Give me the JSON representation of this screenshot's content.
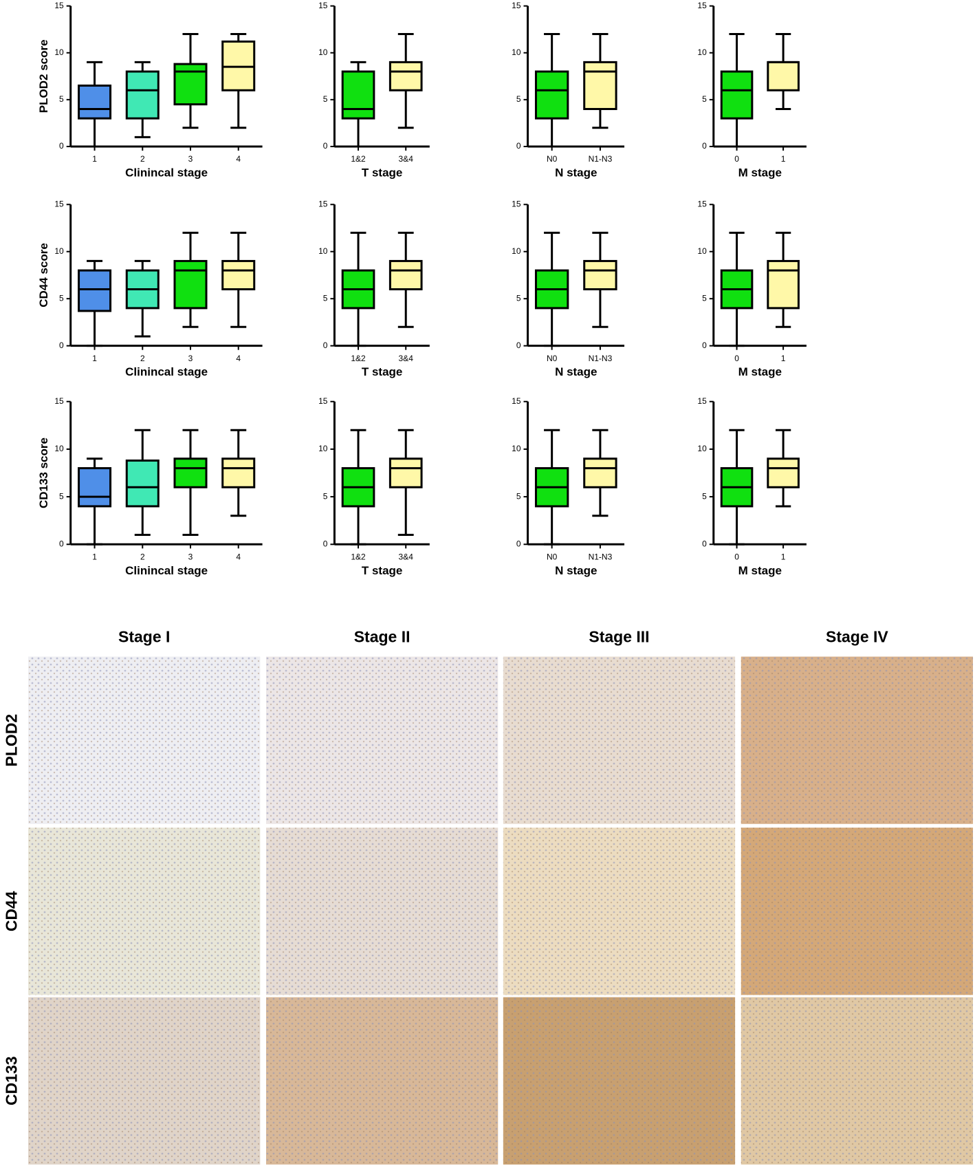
{
  "chart_data": [
    {
      "type": "box",
      "ylabel": "PLOD2 score",
      "xlabel": "Clinincal stage",
      "categories": [
        "1",
        "2",
        "3",
        "4"
      ],
      "colors": [
        "#4f8fe8",
        "#40e8b4",
        "#10e010",
        "#fff8a8"
      ],
      "boxes": [
        {
          "min": 0,
          "q1": 3,
          "median": 4,
          "q3": 6.5,
          "max": 9
        },
        {
          "min": 1,
          "q1": 3,
          "median": 6,
          "q3": 8,
          "max": 9
        },
        {
          "min": 2,
          "q1": 4.5,
          "median": 8,
          "q3": 8.8,
          "max": 12
        },
        {
          "min": 2,
          "q1": 6,
          "median": 8.5,
          "q3": 11.2,
          "max": 12
        }
      ],
      "ylim": [
        0,
        15
      ],
      "yticks": [
        0,
        5,
        10,
        15
      ]
    },
    {
      "type": "box",
      "xlabel": "T stage",
      "categories": [
        "1&2",
        "3&4"
      ],
      "colors": [
        "#10e010",
        "#fff8a8"
      ],
      "boxes": [
        {
          "min": 0,
          "q1": 3,
          "median": 4,
          "q3": 8,
          "max": 9
        },
        {
          "min": 2,
          "q1": 6,
          "median": 8,
          "q3": 9,
          "max": 12
        }
      ],
      "ylim": [
        0,
        15
      ],
      "yticks": [
        0,
        5,
        10,
        15
      ]
    },
    {
      "type": "box",
      "xlabel": "N stage",
      "categories": [
        "N0",
        "N1-N3"
      ],
      "colors": [
        "#10e010",
        "#fff8a8"
      ],
      "boxes": [
        {
          "min": 0,
          "q1": 3,
          "median": 6,
          "q3": 8,
          "max": 12
        },
        {
          "min": 2,
          "q1": 4,
          "median": 8,
          "q3": 9,
          "max": 12
        }
      ],
      "ylim": [
        0,
        15
      ],
      "yticks": [
        0,
        5,
        10,
        15
      ]
    },
    {
      "type": "box",
      "xlabel": "M stage",
      "categories": [
        "0",
        "1"
      ],
      "colors": [
        "#10e010",
        "#fff8a8"
      ],
      "boxes": [
        {
          "min": 0,
          "q1": 3,
          "median": 6,
          "q3": 8,
          "max": 12
        },
        {
          "min": 4,
          "q1": 6,
          "median": 9,
          "q3": 9,
          "max": 12
        }
      ],
      "ylim": [
        0,
        15
      ],
      "yticks": [
        0,
        5,
        10,
        15
      ]
    },
    {
      "type": "box",
      "ylabel": "CD44 score",
      "xlabel": "Clinincal stage",
      "categories": [
        "1",
        "2",
        "3",
        "4"
      ],
      "colors": [
        "#4f8fe8",
        "#40e8b4",
        "#10e010",
        "#fff8a8"
      ],
      "boxes": [
        {
          "min": 0,
          "q1": 3.7,
          "median": 6,
          "q3": 8,
          "max": 9
        },
        {
          "min": 1,
          "q1": 4,
          "median": 6,
          "q3": 8,
          "max": 9
        },
        {
          "min": 2,
          "q1": 4,
          "median": 8,
          "q3": 9,
          "max": 12
        },
        {
          "min": 2,
          "q1": 6,
          "median": 8,
          "q3": 9,
          "max": 12
        }
      ],
      "ylim": [
        0,
        15
      ],
      "yticks": [
        0,
        5,
        10,
        15
      ]
    },
    {
      "type": "box",
      "xlabel": "T stage",
      "categories": [
        "1&2",
        "3&4"
      ],
      "colors": [
        "#10e010",
        "#fff8a8"
      ],
      "boxes": [
        {
          "min": 0,
          "q1": 4,
          "median": 6,
          "q3": 8,
          "max": 12
        },
        {
          "min": 2,
          "q1": 6,
          "median": 8,
          "q3": 9,
          "max": 12
        }
      ],
      "ylim": [
        0,
        15
      ],
      "yticks": [
        0,
        5,
        10,
        15
      ]
    },
    {
      "type": "box",
      "xlabel": "N stage",
      "categories": [
        "N0",
        "N1-N3"
      ],
      "colors": [
        "#10e010",
        "#fff8a8"
      ],
      "boxes": [
        {
          "min": 0,
          "q1": 4,
          "median": 6,
          "q3": 8,
          "max": 12
        },
        {
          "min": 2,
          "q1": 6,
          "median": 8,
          "q3": 9,
          "max": 12
        }
      ],
      "ylim": [
        0,
        15
      ],
      "yticks": [
        0,
        5,
        10,
        15
      ]
    },
    {
      "type": "box",
      "xlabel": "M stage",
      "categories": [
        "0",
        "1"
      ],
      "colors": [
        "#10e010",
        "#fff8a8"
      ],
      "boxes": [
        {
          "min": 0,
          "q1": 4,
          "median": 6,
          "q3": 8,
          "max": 12
        },
        {
          "min": 2,
          "q1": 4,
          "median": 8,
          "q3": 9,
          "max": 12
        }
      ],
      "ylim": [
        0,
        15
      ],
      "yticks": [
        0,
        5,
        10,
        15
      ]
    },
    {
      "type": "box",
      "ylabel": "CD133 score",
      "xlabel": "Clinincal stage",
      "categories": [
        "1",
        "2",
        "3",
        "4"
      ],
      "colors": [
        "#4f8fe8",
        "#40e8b4",
        "#10e010",
        "#fff8a8"
      ],
      "boxes": [
        {
          "min": 0,
          "q1": 4,
          "median": 5,
          "q3": 8,
          "max": 9
        },
        {
          "min": 1,
          "q1": 4,
          "median": 6,
          "q3": 8.8,
          "max": 12
        },
        {
          "min": 1,
          "q1": 6,
          "median": 8,
          "q3": 9,
          "max": 12
        },
        {
          "min": 3,
          "q1": 6,
          "median": 8,
          "q3": 9,
          "max": 12
        }
      ],
      "ylim": [
        0,
        15
      ],
      "yticks": [
        0,
        5,
        10,
        15
      ]
    },
    {
      "type": "box",
      "xlabel": "T stage",
      "categories": [
        "1&2",
        "3&4"
      ],
      "colors": [
        "#10e010",
        "#fff8a8"
      ],
      "boxes": [
        {
          "min": 0,
          "q1": 4,
          "median": 6,
          "q3": 8,
          "max": 12
        },
        {
          "min": 1,
          "q1": 6,
          "median": 8,
          "q3": 9,
          "max": 12
        }
      ],
      "ylim": [
        0,
        15
      ],
      "yticks": [
        0,
        5,
        10,
        15
      ]
    },
    {
      "type": "box",
      "xlabel": "N stage",
      "categories": [
        "N0",
        "N1-N3"
      ],
      "colors": [
        "#10e010",
        "#fff8a8"
      ],
      "boxes": [
        {
          "min": 0,
          "q1": 4,
          "median": 6,
          "q3": 8,
          "max": 12
        },
        {
          "min": 3,
          "q1": 6,
          "median": 8,
          "q3": 9,
          "max": 12
        }
      ],
      "ylim": [
        0,
        15
      ],
      "yticks": [
        0,
        5,
        10,
        15
      ]
    },
    {
      "type": "box",
      "xlabel": "M stage",
      "categories": [
        "0",
        "1"
      ],
      "colors": [
        "#10e010",
        "#fff8a8"
      ],
      "boxes": [
        {
          "min": 0,
          "q1": 4,
          "median": 6,
          "q3": 8,
          "max": 12
        },
        {
          "min": 4,
          "q1": 6,
          "median": 8,
          "q3": 9,
          "max": 12
        }
      ],
      "ylim": [
        0,
        15
      ],
      "yticks": [
        0,
        5,
        10,
        15
      ]
    }
  ],
  "micrographs": {
    "columns": [
      "Stage I",
      "Stage II",
      "Stage III",
      "Stage IV"
    ],
    "rows": [
      "PLOD2",
      "CD44",
      "CD133"
    ]
  }
}
